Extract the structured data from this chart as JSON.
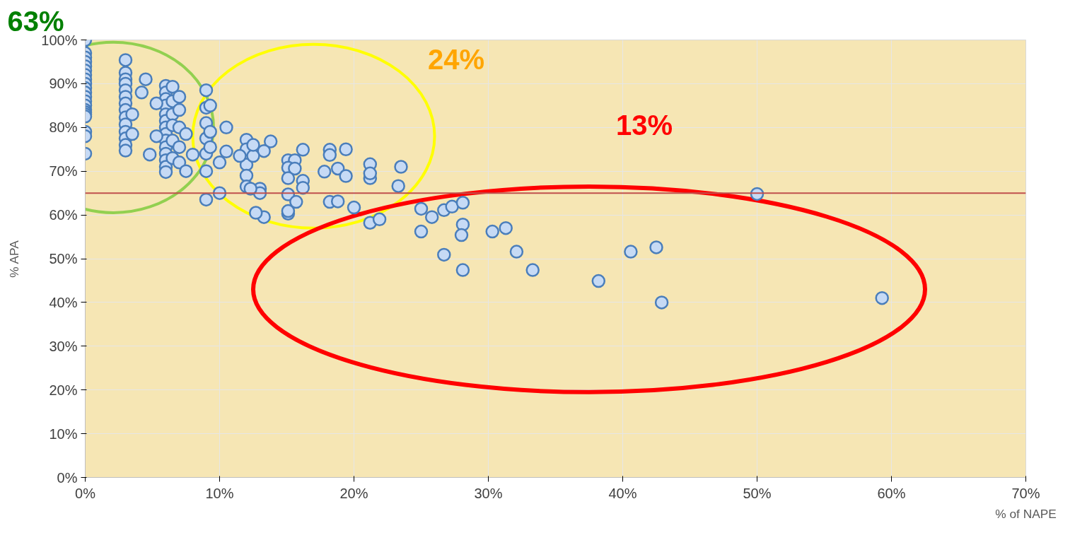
{
  "chart_data": {
    "type": "scatter",
    "xlabel": "% of NAPE",
    "ylabel": "% APA",
    "xlim": [
      0,
      70
    ],
    "ylim": [
      0,
      100
    ],
    "xticks": [
      {
        "value": 0,
        "label": "0%"
      },
      {
        "value": 10,
        "label": "10%"
      },
      {
        "value": 20,
        "label": "20%"
      },
      {
        "value": 30,
        "label": "30%"
      },
      {
        "value": 40,
        "label": "40%"
      },
      {
        "value": 50,
        "label": "50%"
      },
      {
        "value": 60,
        "label": "60%"
      },
      {
        "value": 70,
        "label": "70%"
      }
    ],
    "yticks": [
      {
        "value": 0,
        "label": "0%"
      },
      {
        "value": 10,
        "label": "10%"
      },
      {
        "value": 20,
        "label": "20%"
      },
      {
        "value": 30,
        "label": "30%"
      },
      {
        "value": 40,
        "label": "40%"
      },
      {
        "value": 50,
        "label": "50%"
      },
      {
        "value": 60,
        "label": "60%"
      },
      {
        "value": 70,
        "label": "70%"
      },
      {
        "value": 80,
        "label": "80%"
      },
      {
        "value": 90,
        "label": "90%"
      },
      {
        "value": 100,
        "label": "100%"
      }
    ],
    "grid": true,
    "marker": "circle",
    "annotations": [
      "63%",
      "24%",
      "13%"
    ],
    "ref_lines": [
      {
        "axis": "y",
        "value": 65,
        "label": null,
        "color": "#c0504d"
      }
    ],
    "series": [
      {
        "color": "#c6daf5",
        "x": [
          0,
          0,
          0,
          0,
          0,
          0,
          0,
          0,
          0,
          0,
          0,
          0,
          0,
          0,
          0,
          0,
          0,
          0,
          0,
          0,
          0,
          3,
          3,
          3,
          3,
          3,
          3,
          3,
          3,
          3,
          3,
          3,
          3,
          3,
          3,
          3.5,
          3.5,
          4.5,
          4.2,
          6,
          6,
          6,
          6,
          6,
          6,
          6,
          6,
          6,
          6,
          6,
          6,
          6,
          6,
          6.5,
          6.5,
          6.5,
          6.5,
          6.5,
          6.5,
          7,
          7,
          7,
          7,
          7,
          5.3,
          5.3,
          4.8,
          7.5,
          7.5,
          8,
          9,
          9,
          9,
          9,
          9,
          9,
          9,
          9.3,
          9.3,
          9.3,
          10,
          10,
          10.5,
          10.5,
          13.8,
          13.3,
          16.2,
          15.1,
          15.6,
          15.1,
          15.6,
          17.8,
          18.8,
          19.4,
          18.2,
          18.2,
          19.4,
          21.2,
          21.2,
          21.2,
          23.5,
          23.3,
          15.1,
          16.2,
          16.2,
          15.1,
          15.7,
          18.2,
          18.8,
          20,
          15.1,
          15.1,
          13.3,
          21.2,
          21.9,
          25,
          25.8,
          26.7,
          27.3,
          28.1,
          25,
          28.1,
          28,
          30.3,
          31.3,
          32.1,
          26.7,
          28.1,
          50,
          33.3,
          38.2,
          40.6,
          42.5,
          42.9,
          59.3,
          12,
          12,
          12,
          12,
          12,
          12.5,
          12.5,
          11.5,
          12.7,
          13,
          13,
          12.3
        ],
        "values": [
          100,
          97,
          96,
          95,
          94,
          93,
          92,
          91,
          90,
          89,
          88,
          87,
          86,
          85,
          84,
          83.5,
          83,
          82.5,
          79,
          78,
          74,
          95.4,
          92.5,
          91,
          90,
          88.5,
          87,
          85.5,
          84,
          82.3,
          80.7,
          79,
          77.5,
          76,
          74.7,
          83,
          78.5,
          91,
          88,
          89.5,
          88,
          86.5,
          85,
          83,
          81.5,
          80,
          78.5,
          77,
          75.5,
          74,
          72.5,
          71,
          69.8,
          89.3,
          86,
          83,
          80.5,
          77,
          73,
          87,
          84,
          80,
          75.5,
          72,
          85.5,
          78,
          73.8,
          78.5,
          70,
          73.8,
          88.5,
          84.5,
          81,
          77.5,
          74,
          70,
          63.5,
          85,
          79,
          75.5,
          72,
          65,
          80,
          74.5,
          76.8,
          74.6,
          74.9,
          72.5,
          72.5,
          70.8,
          70.6,
          69.9,
          70.6,
          68.9,
          74.9,
          73.7,
          75,
          71.6,
          68.4,
          69.5,
          71,
          66.6,
          68.4,
          67.8,
          66.2,
          64.7,
          63,
          63,
          63.1,
          61.7,
          60.3,
          60.9,
          59.5,
          58.2,
          59,
          61.4,
          59.5,
          61.1,
          61.9,
          62.8,
          56.2,
          57.8,
          55.4,
          56.2,
          57,
          51.6,
          50.9,
          47.4,
          64.8,
          47.4,
          44.9,
          51.6,
          52.6,
          40,
          41,
          77.2,
          75,
          71.5,
          69,
          66.5,
          73.5,
          76,
          73.5,
          60.5,
          66,
          65,
          66
        ]
      }
    ]
  }
}
